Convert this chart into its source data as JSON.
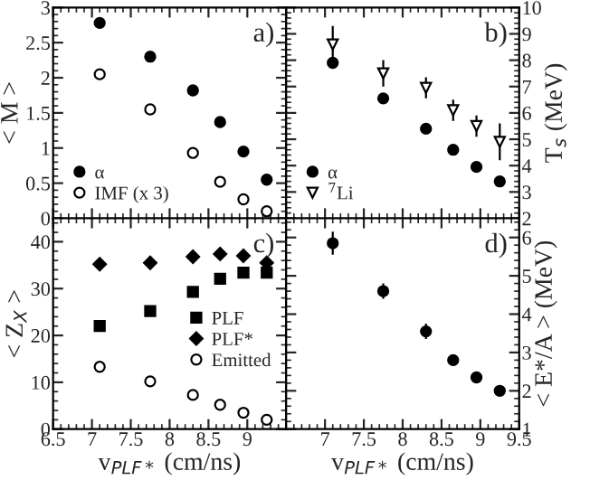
{
  "chart_data": [
    {
      "type": "scatter",
      "ylabel": "< M >",
      "annotations": [
        "a)"
      ],
      "x": [
        7.1,
        7.75,
        8.3,
        8.65,
        8.95,
        9.25
      ],
      "xlim": [
        6.5,
        9.5
      ],
      "ylim": [
        0,
        3
      ],
      "yticks": [
        0,
        0.5,
        1,
        1.5,
        2,
        2.5,
        3
      ],
      "xticks": [
        6.5,
        7,
        7.5,
        8,
        8.5,
        9,
        9.5
      ],
      "tick_labels": "y",
      "legend": "bottom left",
      "grid": false,
      "series": [
        {
          "name": "α",
          "color": "#000000",
          "marker": "circle",
          "values": [
            2.78,
            2.3,
            1.82,
            1.37,
            0.95,
            0.55
          ]
        },
        {
          "name": "IMF (x 3)",
          "color": "#ffffff",
          "marker": "circle",
          "values": [
            2.05,
            1.55,
            0.93,
            0.52,
            0.27,
            0.1
          ]
        }
      ]
    },
    {
      "type": "scatter",
      "ylabel": "T$_{s}$ (MeV)",
      "annotations": [
        "b)"
      ],
      "x": [
        7.1,
        7.75,
        8.3,
        8.65,
        8.95,
        9.25
      ],
      "xlim": [
        6.5,
        9.5
      ],
      "ylim": [
        2,
        10
      ],
      "yticks": [
        2,
        3,
        4,
        5,
        6,
        7,
        8,
        9,
        10
      ],
      "xticks": [
        6.5,
        7,
        7.5,
        8,
        8.5,
        9,
        9.5
      ],
      "tick_labels": "y",
      "legend": "bottom left",
      "grid": false,
      "series": [
        {
          "name": "α",
          "color": "#000000",
          "marker": "circle",
          "values": [
            7.9,
            6.55,
            5.4,
            4.6,
            3.95,
            3.4
          ]
        },
        {
          "name": "$^{7}$Li",
          "color": "#ffffff",
          "marker": "triangle",
          "values": [
            8.6,
            7.5,
            6.95,
            6.1,
            5.5,
            4.9
          ],
          "errors": [
            0.7,
            0.5,
            0.4,
            0.4,
            0.4,
            0.7
          ]
        }
      ]
    },
    {
      "type": "scatter",
      "ylabel": "< Z$_{X}$ >",
      "xlabel": "v$_{PLF*}$ (cm/ns)",
      "annotations": [
        "c)"
      ],
      "x": [
        7.1,
        7.75,
        8.3,
        8.65,
        8.95,
        9.25
      ],
      "xlim": [
        6.5,
        9.5
      ],
      "ylim": [
        0,
        45
      ],
      "yticks": [
        0,
        10,
        20,
        30,
        40
      ],
      "xticks": [
        6.5,
        7,
        7.5,
        8,
        8.5,
        9
      ],
      "legend": "right",
      "grid": false,
      "series": [
        {
          "name": "PLF",
          "color": "#000000",
          "marker": "square",
          "values": [
            22,
            25.2,
            29.3,
            32.1,
            33.4,
            33.4
          ]
        },
        {
          "name": "PLF*",
          "color": "#000000",
          "marker": "diamond",
          "values": [
            35.2,
            35.5,
            36.8,
            37.4,
            37,
            35.5
          ]
        },
        {
          "name": "Emitted",
          "color": "#ffffff",
          "marker": "circle",
          "values": [
            13.3,
            10.2,
            7.3,
            5.2,
            3.5,
            2
          ]
        }
      ]
    },
    {
      "type": "scatter",
      "ylabel": "< E*/A > (MeV)",
      "xlabel": "v$_{PLF*}$ (cm/ns)",
      "annotations": [
        "d)"
      ],
      "x": [
        7.1,
        7.75,
        8.3,
        8.65,
        8.95,
        9.25
      ],
      "xlim": [
        6.5,
        9.5
      ],
      "ylim": [
        1,
        6.5
      ],
      "yticks": [
        1,
        2,
        3,
        4,
        5,
        6
      ],
      "xticks": [
        7,
        7.5,
        8,
        8.5,
        9,
        9.5
      ],
      "grid": false,
      "series": [
        {
          "color": "#000000",
          "marker": "circle",
          "values": [
            5.85,
            4.6,
            3.55,
            2.8,
            2.35,
            2.0
          ],
          "errors": [
            0.3,
            0.2,
            0.2,
            0.15,
            0.1,
            0.1
          ]
        }
      ]
    }
  ]
}
